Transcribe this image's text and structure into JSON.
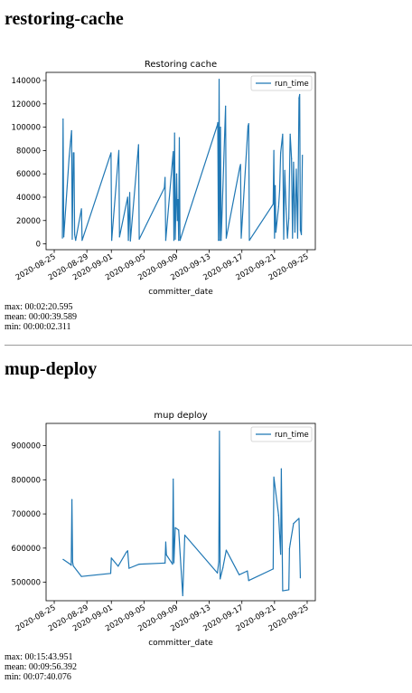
{
  "sections": [
    {
      "heading": "restoring-cache",
      "stats": {
        "max": "max: 00:02:20.595",
        "mean": "mean: 00:00:39.589",
        "min": "min: 00:00:02.311"
      }
    },
    {
      "heading": "mup-deploy",
      "stats": {
        "max": "max: 00:15:43.951",
        "mean": "mean: 00:09:56.392",
        "min": "min: 00:07:40.076"
      }
    }
  ],
  "chart_data": [
    {
      "type": "line",
      "title": "Restoring cache",
      "xlabel": "committer_date",
      "ylabel": "",
      "legend": "top-right",
      "grid": false,
      "color": "#1f77b4",
      "series": [
        {
          "name": "run_time"
        }
      ],
      "xlim": [
        "2020-08-24",
        "2020-09-26"
      ],
      "ylim": [
        -5000,
        147000
      ],
      "x_ticks": [
        "2020-08-25",
        "2020-08-29",
        "2020-09-01",
        "2020-09-05",
        "2020-09-09",
        "2020-09-13",
        "2020-09-17",
        "2020-09-21",
        "2020-09-25"
      ],
      "y_ticks": [
        0,
        20000,
        40000,
        60000,
        80000,
        100000,
        120000,
        140000
      ],
      "points": [
        [
          "2020-08-26 00:00",
          5000
        ],
        [
          "2020-08-26 02:00",
          107000
        ],
        [
          "2020-08-26 04:00",
          6000
        ],
        [
          "2020-08-26 20:00",
          75000
        ],
        [
          "2020-08-27 00:00",
          88000
        ],
        [
          "2020-08-27 03:00",
          97000
        ],
        [
          "2020-08-27 05:00",
          4000
        ],
        [
          "2020-08-27 08:00",
          78000
        ],
        [
          "2020-08-27 10:00",
          78000
        ],
        [
          "2020-08-27 12:00",
          8000
        ],
        [
          "2020-08-27 15:00",
          3000
        ],
        [
          "2020-08-28 08:00",
          30000
        ],
        [
          "2020-08-28 10:00",
          3000
        ],
        [
          "2020-08-31 23:00",
          78000
        ],
        [
          "2020-09-01 01:00",
          3000
        ],
        [
          "2020-09-01 22:00",
          80000
        ],
        [
          "2020-09-02 00:00",
          6000
        ],
        [
          "2020-09-03 00:00",
          40000
        ],
        [
          "2020-09-03 02:00",
          3000
        ],
        [
          "2020-09-03 06:00",
          44000
        ],
        [
          "2020-09-03 08:00",
          2500
        ],
        [
          "2020-09-04 08:00",
          85000
        ],
        [
          "2020-09-04 10:00",
          4000
        ],
        [
          "2020-09-07 12:00",
          48000
        ],
        [
          "2020-09-07 14:00",
          57000
        ],
        [
          "2020-09-07 16:00",
          3000
        ],
        [
          "2020-09-08 14:00",
          79000
        ],
        [
          "2020-09-08 16:00",
          3000
        ],
        [
          "2020-09-08 18:00",
          95000
        ],
        [
          "2020-09-08 20:00",
          4000
        ],
        [
          "2020-09-09 00:00",
          60000
        ],
        [
          "2020-09-09 02:00",
          20000
        ],
        [
          "2020-09-09 04:00",
          38000
        ],
        [
          "2020-09-09 06:00",
          3000
        ],
        [
          "2020-09-09 08:00",
          91000
        ],
        [
          "2020-09-09 10:00",
          3000
        ],
        [
          "2020-09-14 00:00",
          102000
        ],
        [
          "2020-09-14 01:00",
          104000
        ],
        [
          "2020-09-14 03:00",
          3000
        ],
        [
          "2020-09-14 05:00",
          141000
        ],
        [
          "2020-09-14 07:00",
          3000
        ],
        [
          "2020-09-14 09:00",
          100000
        ],
        [
          "2020-09-14 11:00",
          3000
        ],
        [
          "2020-09-15 00:00",
          118000
        ],
        [
          "2020-09-15 02:00",
          5000
        ],
        [
          "2020-09-16 18:00",
          66000
        ],
        [
          "2020-09-16 20:00",
          68000
        ],
        [
          "2020-09-16 22:00",
          5000
        ],
        [
          "2020-09-17 18:00",
          101000
        ],
        [
          "2020-09-17 20:00",
          103000
        ],
        [
          "2020-09-17 22:00",
          3000
        ],
        [
          "2020-09-20 20:00",
          34000
        ],
        [
          "2020-09-20 22:00",
          80000
        ],
        [
          "2020-09-21 00:00",
          5000
        ],
        [
          "2020-09-21 02:00",
          50000
        ],
        [
          "2020-09-21 04:00",
          10000
        ],
        [
          "2020-09-21 12:00",
          32000
        ],
        [
          "2020-09-21 15:00",
          46000
        ],
        [
          "2020-09-21 18:00",
          78000
        ],
        [
          "2020-09-22 00:00",
          94000
        ],
        [
          "2020-09-22 03:00",
          4000
        ],
        [
          "2020-09-22 06:00",
          63000
        ],
        [
          "2020-09-22 10:00",
          30000
        ],
        [
          "2020-09-22 14:00",
          5000
        ],
        [
          "2020-09-22 18:00",
          22000
        ],
        [
          "2020-09-22 22:00",
          94000
        ],
        [
          "2020-09-23 02:00",
          73000
        ],
        [
          "2020-09-23 05:00",
          5000
        ],
        [
          "2020-09-23 08:00",
          70000
        ],
        [
          "2020-09-23 12:00",
          10000
        ],
        [
          "2020-09-23 16:00",
          64000
        ],
        [
          "2020-09-23 20:00",
          5000
        ],
        [
          "2020-09-24 00:00",
          125000
        ],
        [
          "2020-09-24 02:00",
          128000
        ],
        [
          "2020-09-24 04:00",
          12000
        ],
        [
          "2020-09-24 07:00",
          8000
        ],
        [
          "2020-09-24 10:00",
          76000
        ]
      ]
    },
    {
      "type": "line",
      "title": "mup deploy",
      "xlabel": "committer_date",
      "ylabel": "",
      "legend": "top-right",
      "grid": false,
      "color": "#1f77b4",
      "series": [
        {
          "name": "run_time"
        }
      ],
      "xlim": [
        "2020-08-24",
        "2020-09-26"
      ],
      "ylim": [
        446000,
        965000
      ],
      "x_ticks": [
        "2020-08-25",
        "2020-08-29",
        "2020-09-01",
        "2020-09-05",
        "2020-09-09",
        "2020-09-13",
        "2020-09-17",
        "2020-09-21",
        "2020-09-25"
      ],
      "y_ticks": [
        500000,
        600000,
        700000,
        800000,
        900000
      ],
      "points": [
        [
          "2020-08-26 02:00",
          567000
        ],
        [
          "2020-08-26 20:00",
          555000
        ],
        [
          "2020-08-27 02:00",
          550000
        ],
        [
          "2020-08-27 04:00",
          742000
        ],
        [
          "2020-08-27 06:00",
          560000
        ],
        [
          "2020-08-27 08:00",
          548000
        ],
        [
          "2020-08-28 08:00",
          517000
        ],
        [
          "2020-08-31 22:00",
          526000
        ],
        [
          "2020-09-01 00:00",
          571000
        ],
        [
          "2020-09-01 20:00",
          547000
        ],
        [
          "2020-09-02 20:00",
          588000
        ],
        [
          "2020-09-03 00:00",
          592000
        ],
        [
          "2020-09-03 04:00",
          541000
        ],
        [
          "2020-09-04 10:00",
          553000
        ],
        [
          "2020-09-07 10:00",
          556000
        ],
        [
          "2020-09-07 14:00",
          556000
        ],
        [
          "2020-09-07 16:00",
          618000
        ],
        [
          "2020-09-07 18:00",
          580000
        ],
        [
          "2020-09-08 12:00",
          553000
        ],
        [
          "2020-09-08 14:00",
          802000
        ],
        [
          "2020-09-08 16:00",
          557000
        ],
        [
          "2020-09-08 20:00",
          660000
        ],
        [
          "2020-09-09 06:00",
          653000
        ],
        [
          "2020-09-09 18:00",
          461000
        ],
        [
          "2020-09-10 00:00",
          638000
        ],
        [
          "2020-09-14 00:00",
          527000
        ],
        [
          "2020-09-14 04:00",
          560000
        ],
        [
          "2020-09-14 06:00",
          942000
        ],
        [
          "2020-09-14 08:00",
          510000
        ],
        [
          "2020-09-14 16:00",
          542000
        ],
        [
          "2020-09-15 02:00",
          594000
        ],
        [
          "2020-09-16 16:00",
          522000
        ],
        [
          "2020-09-17 16:00",
          533000
        ],
        [
          "2020-09-17 20:00",
          505000
        ],
        [
          "2020-09-20 20:00",
          539000
        ],
        [
          "2020-09-20 22:00",
          808000
        ],
        [
          "2020-09-21 12:00",
          696000
        ],
        [
          "2020-09-21 18:00",
          582000
        ],
        [
          "2020-09-21 20:00",
          832000
        ],
        [
          "2020-09-22 00:00",
          475000
        ],
        [
          "2020-09-22 18:00",
          478000
        ],
        [
          "2020-09-22 20:00",
          598000
        ],
        [
          "2020-09-22 22:00",
          612000
        ],
        [
          "2020-09-23 08:00",
          672000
        ],
        [
          "2020-09-24 00:00",
          687000
        ],
        [
          "2020-09-24 04:00",
          513000
        ]
      ]
    }
  ]
}
